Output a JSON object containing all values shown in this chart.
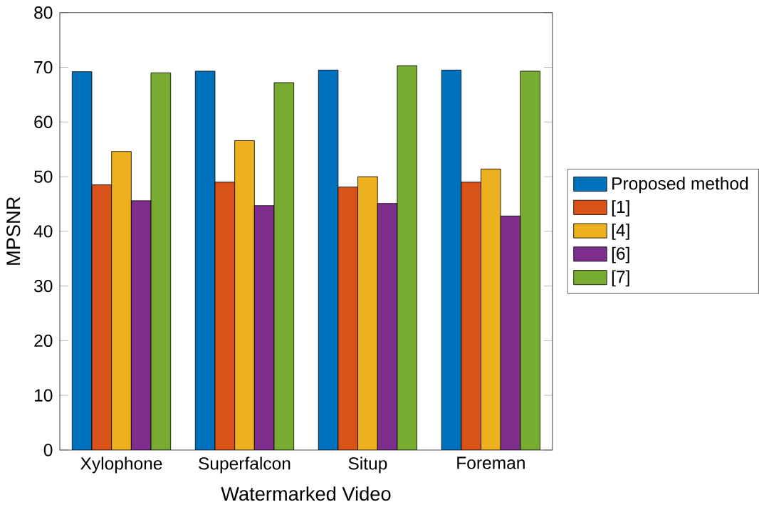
{
  "chart_data": {
    "type": "bar",
    "xlabel": "Watermarked Video",
    "ylabel": "MPSNR",
    "categories": [
      "Xylophone",
      "Superfalcon",
      "Situp",
      "Foreman"
    ],
    "series": [
      {
        "name": "Proposed method",
        "color": "#0072bd",
        "values": [
          69.2,
          69.3,
          69.5,
          69.5
        ]
      },
      {
        "name": "[1]",
        "color": "#d95319",
        "values": [
          48.5,
          49.0,
          48.1,
          49.0
        ]
      },
      {
        "name": "[4]",
        "color": "#edb120",
        "values": [
          54.6,
          56.6,
          50.0,
          51.4
        ]
      },
      {
        "name": "[6]",
        "color": "#7e2f8e",
        "values": [
          45.6,
          44.7,
          45.1,
          42.8
        ]
      },
      {
        "name": "[7]",
        "color": "#77ac30",
        "values": [
          69.0,
          67.2,
          70.3,
          69.3
        ]
      }
    ],
    "ylim": [
      0,
      80
    ],
    "yticks": [
      0,
      10,
      20,
      30,
      40,
      50,
      60,
      70,
      80
    ],
    "grid": false,
    "legend": "right"
  }
}
